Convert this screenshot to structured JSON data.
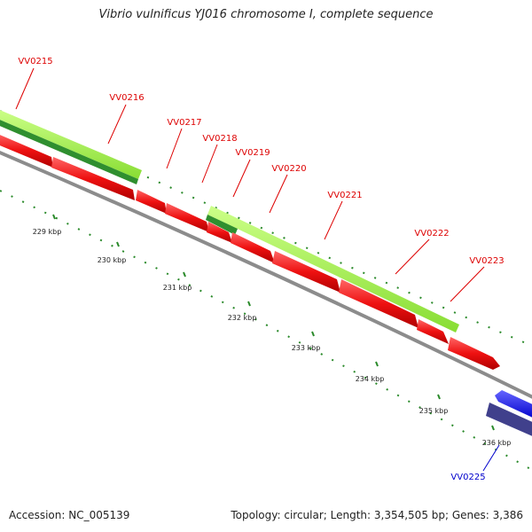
{
  "title": "Vibrio vulnificus YJ016 chromosome I, complete sequence",
  "footer": {
    "accession": "Accession: NC_005139",
    "summary": "Topology: circular; Length: 3,354,505 bp; Genes: 3,386"
  },
  "colors": {
    "backbone": "#8c8c8c",
    "forward_cds": "#ee1111",
    "reverse_cds": "#1a1aee",
    "forward_gene": "#99ee44",
    "forward_gene_dark": "#2f8f2f",
    "reverse_gene": "#40408c",
    "tick": "#2a8a2a",
    "label_forward": "#dd0000",
    "label_reverse": "#0000cc"
  },
  "ticks": [
    {
      "label": "229 kbp"
    },
    {
      "label": "230 kbp"
    },
    {
      "label": "231 kbp"
    },
    {
      "label": "232 kbp"
    },
    {
      "label": "233 kbp"
    },
    {
      "label": "234 kbp"
    },
    {
      "label": "235 kbp"
    },
    {
      "label": "236 kbp"
    }
  ],
  "gene_labels": [
    {
      "name": "VV0215",
      "strand": "forward"
    },
    {
      "name": "VV0216",
      "strand": "forward"
    },
    {
      "name": "VV0217",
      "strand": "forward"
    },
    {
      "name": "VV0218",
      "strand": "forward"
    },
    {
      "name": "VV0219",
      "strand": "forward"
    },
    {
      "name": "VV0220",
      "strand": "forward"
    },
    {
      "name": "VV0221",
      "strand": "forward"
    },
    {
      "name": "VV0222",
      "strand": "forward"
    },
    {
      "name": "VV0223",
      "strand": "forward"
    },
    {
      "name": "VV0225",
      "strand": "reverse"
    }
  ]
}
